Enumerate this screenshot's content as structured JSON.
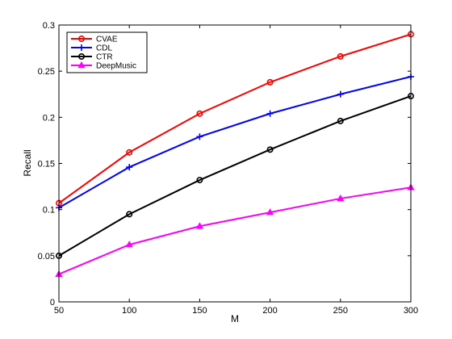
{
  "chart_data": {
    "type": "line",
    "title": "",
    "xlabel": "M",
    "ylabel": "Recall",
    "x": [
      50,
      100,
      150,
      200,
      250,
      300
    ],
    "xlim": [
      50,
      300
    ],
    "ylim": [
      0,
      0.3
    ],
    "xticks": [
      "50",
      "100",
      "150",
      "200",
      "250",
      "300"
    ],
    "yticks": [
      "0",
      "0.05",
      "0.1",
      "0.15",
      "0.2",
      "0.25",
      "0.3"
    ],
    "xtick_values": [
      50,
      100,
      150,
      200,
      250,
      300
    ],
    "ytick_values": [
      0,
      0.05,
      0.1,
      0.15,
      0.2,
      0.25,
      0.3
    ],
    "grid": false,
    "legend_position": "top-left",
    "series": [
      {
        "name": "CVAE",
        "color": "#ff0000",
        "marker": "circle",
        "values": [
          0.107,
          0.162,
          0.204,
          0.238,
          0.266,
          0.29
        ]
      },
      {
        "name": "CDL",
        "color": "#0000ff",
        "marker": "plus",
        "values": [
          0.102,
          0.146,
          0.179,
          0.204,
          0.225,
          0.244
        ]
      },
      {
        "name": "CTR",
        "color": "#000000",
        "marker": "circle",
        "values": [
          0.05,
          0.095,
          0.132,
          0.165,
          0.196,
          0.223
        ]
      },
      {
        "name": "DeepMusic",
        "color": "#ff00ff",
        "marker": "triangle",
        "values": [
          0.03,
          0.062,
          0.082,
          0.097,
          0.112,
          0.124
        ]
      }
    ]
  }
}
